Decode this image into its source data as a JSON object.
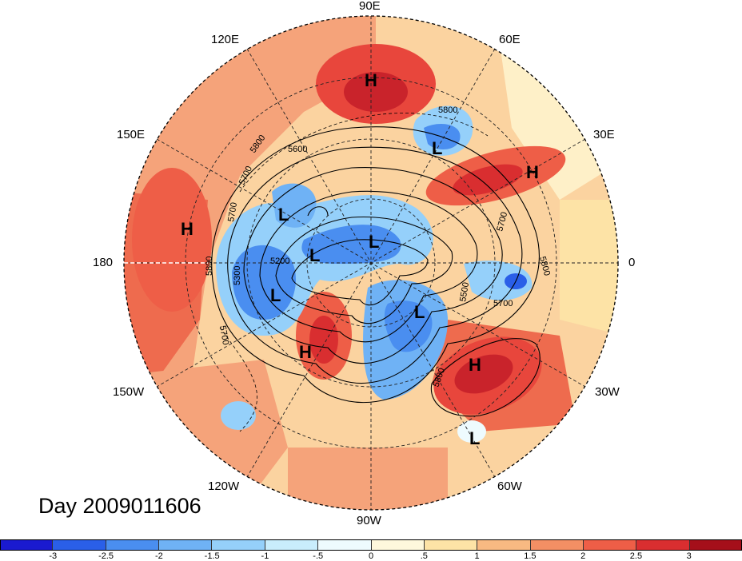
{
  "date_label": "Day 2009011606",
  "lon_labels": {
    "n90e": "90E",
    "n120e": "120E",
    "n60e": "60E",
    "n150e": "150E",
    "n30e": "30E",
    "n180": "180",
    "n0": "0",
    "n150w": "150W",
    "n30w": "30W",
    "n120w": "120W",
    "n60w": "60W",
    "n90w": "90W"
  },
  "pressure_centers": [
    {
      "type": "H",
      "lon_lat_hint": "Siberia"
    },
    {
      "type": "L",
      "lon_lat_hint": "Kara Sea"
    },
    {
      "type": "H",
      "lon_lat_hint": "Europe"
    },
    {
      "type": "L",
      "lon_lat_hint": "East Siberian Sea"
    },
    {
      "type": "H",
      "lon_lat_hint": "North Pacific"
    },
    {
      "type": "L",
      "lon_lat_hint": "Arctic Ocean"
    },
    {
      "type": "L",
      "lon_lat_hint": "Beaufort"
    },
    {
      "type": "L",
      "lon_lat_hint": "Gulf of Alaska"
    },
    {
      "type": "L",
      "lon_lat_hint": "Hudson Bay"
    },
    {
      "type": "H",
      "lon_lat_hint": "Western North America"
    },
    {
      "type": "H",
      "lon_lat_hint": "Central Atlantic"
    },
    {
      "type": "L",
      "lon_lat_hint": "Caribbean"
    }
  ],
  "contour_labels": [
    "5800",
    "5600",
    "5800",
    "5700",
    "5700",
    "5200",
    "5800",
    "5300",
    "5700",
    "5700",
    "5800",
    "5500",
    "5700",
    "5800"
  ],
  "colorbar": {
    "colors": [
      "#1a1ad0",
      "#2a5fe8",
      "#4a8ef0",
      "#6fb2f5",
      "#95d0fa",
      "#c9edfc",
      "#eefbfe",
      "#fef8dc",
      "#fde3a6",
      "#f8b982",
      "#f38f64",
      "#ee5e47",
      "#d92e30",
      "#a50f1a"
    ],
    "tick_labels": [
      "-3",
      "-2.5",
      "-2",
      "-1.5",
      "-1",
      "-.5",
      "0",
      ".5",
      "1",
      "1.5",
      "2",
      "2.5",
      "3"
    ]
  }
}
